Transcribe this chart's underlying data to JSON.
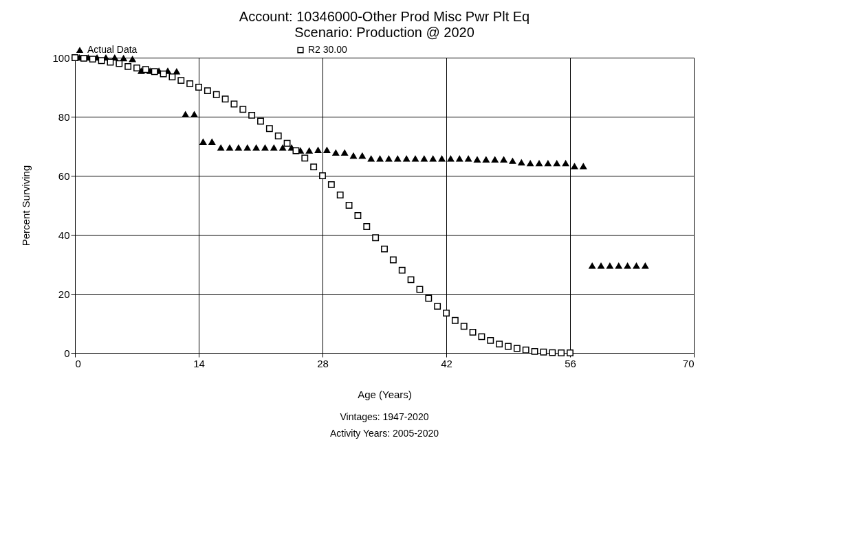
{
  "chart_data": {
    "type": "scatter",
    "title": "Account: 10346000-Other Prod Misc Pwr Plt Eq",
    "subtitle": "Scenario: Production @ 2020",
    "xlabel": "Age (Years)",
    "ylabel": "Percent Surviving",
    "annotations": [
      "Vintages: 1947-2020",
      "Activity Years: 2005-2020"
    ],
    "xlim": [
      0,
      70
    ],
    "xticks": [
      0,
      14,
      28,
      42,
      56,
      70
    ],
    "ylim": [
      0,
      100
    ],
    "yticks": [
      0,
      20,
      40,
      60,
      80,
      100
    ],
    "grid": true,
    "legend": "top",
    "series": [
      {
        "name": "Actual Data",
        "color": "#000000",
        "marker": "triangle",
        "x": [
          0.5,
          1.5,
          2.5,
          3.5,
          4.5,
          5.5,
          6.5,
          7.5,
          8.5,
          9.5,
          10.5,
          11.5,
          12.5,
          13.5,
          14.5,
          15.5,
          16.5,
          17.5,
          18.5,
          19.5,
          20.5,
          21.5,
          22.5,
          23.5,
          24.5,
          25.5,
          26.5,
          27.5,
          28.5,
          29.5,
          30.5,
          31.5,
          32.5,
          33.5,
          34.5,
          35.5,
          36.5,
          37.5,
          38.5,
          39.5,
          40.5,
          41.5,
          42.5,
          43.5,
          44.5,
          45.5,
          46.5,
          47.5,
          48.5,
          49.5,
          50.5,
          51.5,
          52.5,
          53.5,
          54.5,
          55.5,
          56.5,
          57.5,
          58.5,
          59.5,
          60.5,
          61.5,
          62.5,
          63.5,
          64.5
        ],
        "values": [
          100,
          100,
          100,
          100,
          100,
          99.8,
          99.5,
          95.5,
          95.5,
          95.5,
          95.5,
          95.3,
          80.8,
          80.8,
          71.5,
          71.5,
          69.5,
          69.5,
          69.5,
          69.5,
          69.5,
          69.5,
          69.5,
          69.5,
          69.5,
          68.5,
          68.5,
          68.7,
          68.7,
          67.8,
          67.8,
          66.8,
          66.8,
          65.8,
          65.8,
          65.8,
          65.8,
          65.8,
          65.8,
          65.8,
          65.8,
          65.8,
          65.8,
          65.8,
          65.8,
          65.5,
          65.5,
          65.5,
          65.5,
          65,
          64.5,
          64.2,
          64.2,
          64.2,
          64.2,
          64.2,
          63.2,
          63.2,
          29.5,
          29.5,
          29.5,
          29.5,
          29.5,
          29.5,
          29.5
        ]
      },
      {
        "name": "R2 30.00",
        "color": "#000000",
        "marker": "square",
        "x": [
          0,
          1,
          2,
          3,
          4,
          5,
          6,
          7,
          8,
          9,
          10,
          11,
          12,
          13,
          14,
          15,
          16,
          17,
          18,
          19,
          20,
          21,
          22,
          23,
          24,
          25,
          26,
          27,
          28,
          29,
          30,
          31,
          32,
          33,
          34,
          35,
          36,
          37,
          38,
          39,
          40,
          41,
          42,
          43,
          44,
          45,
          46,
          47,
          48,
          49,
          50,
          51,
          52,
          53,
          54,
          55,
          56
        ],
        "values": [
          100,
          99.8,
          99.5,
          99,
          98.5,
          98,
          97,
          96.5,
          96,
          95.3,
          94.5,
          93.5,
          92.3,
          91.2,
          90,
          88.8,
          87.5,
          86,
          84.3,
          82.5,
          80.5,
          78.5,
          76,
          73.5,
          71,
          68.5,
          66,
          63,
          60,
          57,
          53.5,
          50,
          46.5,
          42.8,
          39,
          35.2,
          31.5,
          28,
          24.8,
          21.5,
          18.5,
          15.8,
          13.5,
          11,
          9,
          7,
          5.5,
          4.2,
          3,
          2.2,
          1.5,
          1,
          0.5,
          0.3,
          0.1,
          0,
          0
        ]
      }
    ]
  }
}
